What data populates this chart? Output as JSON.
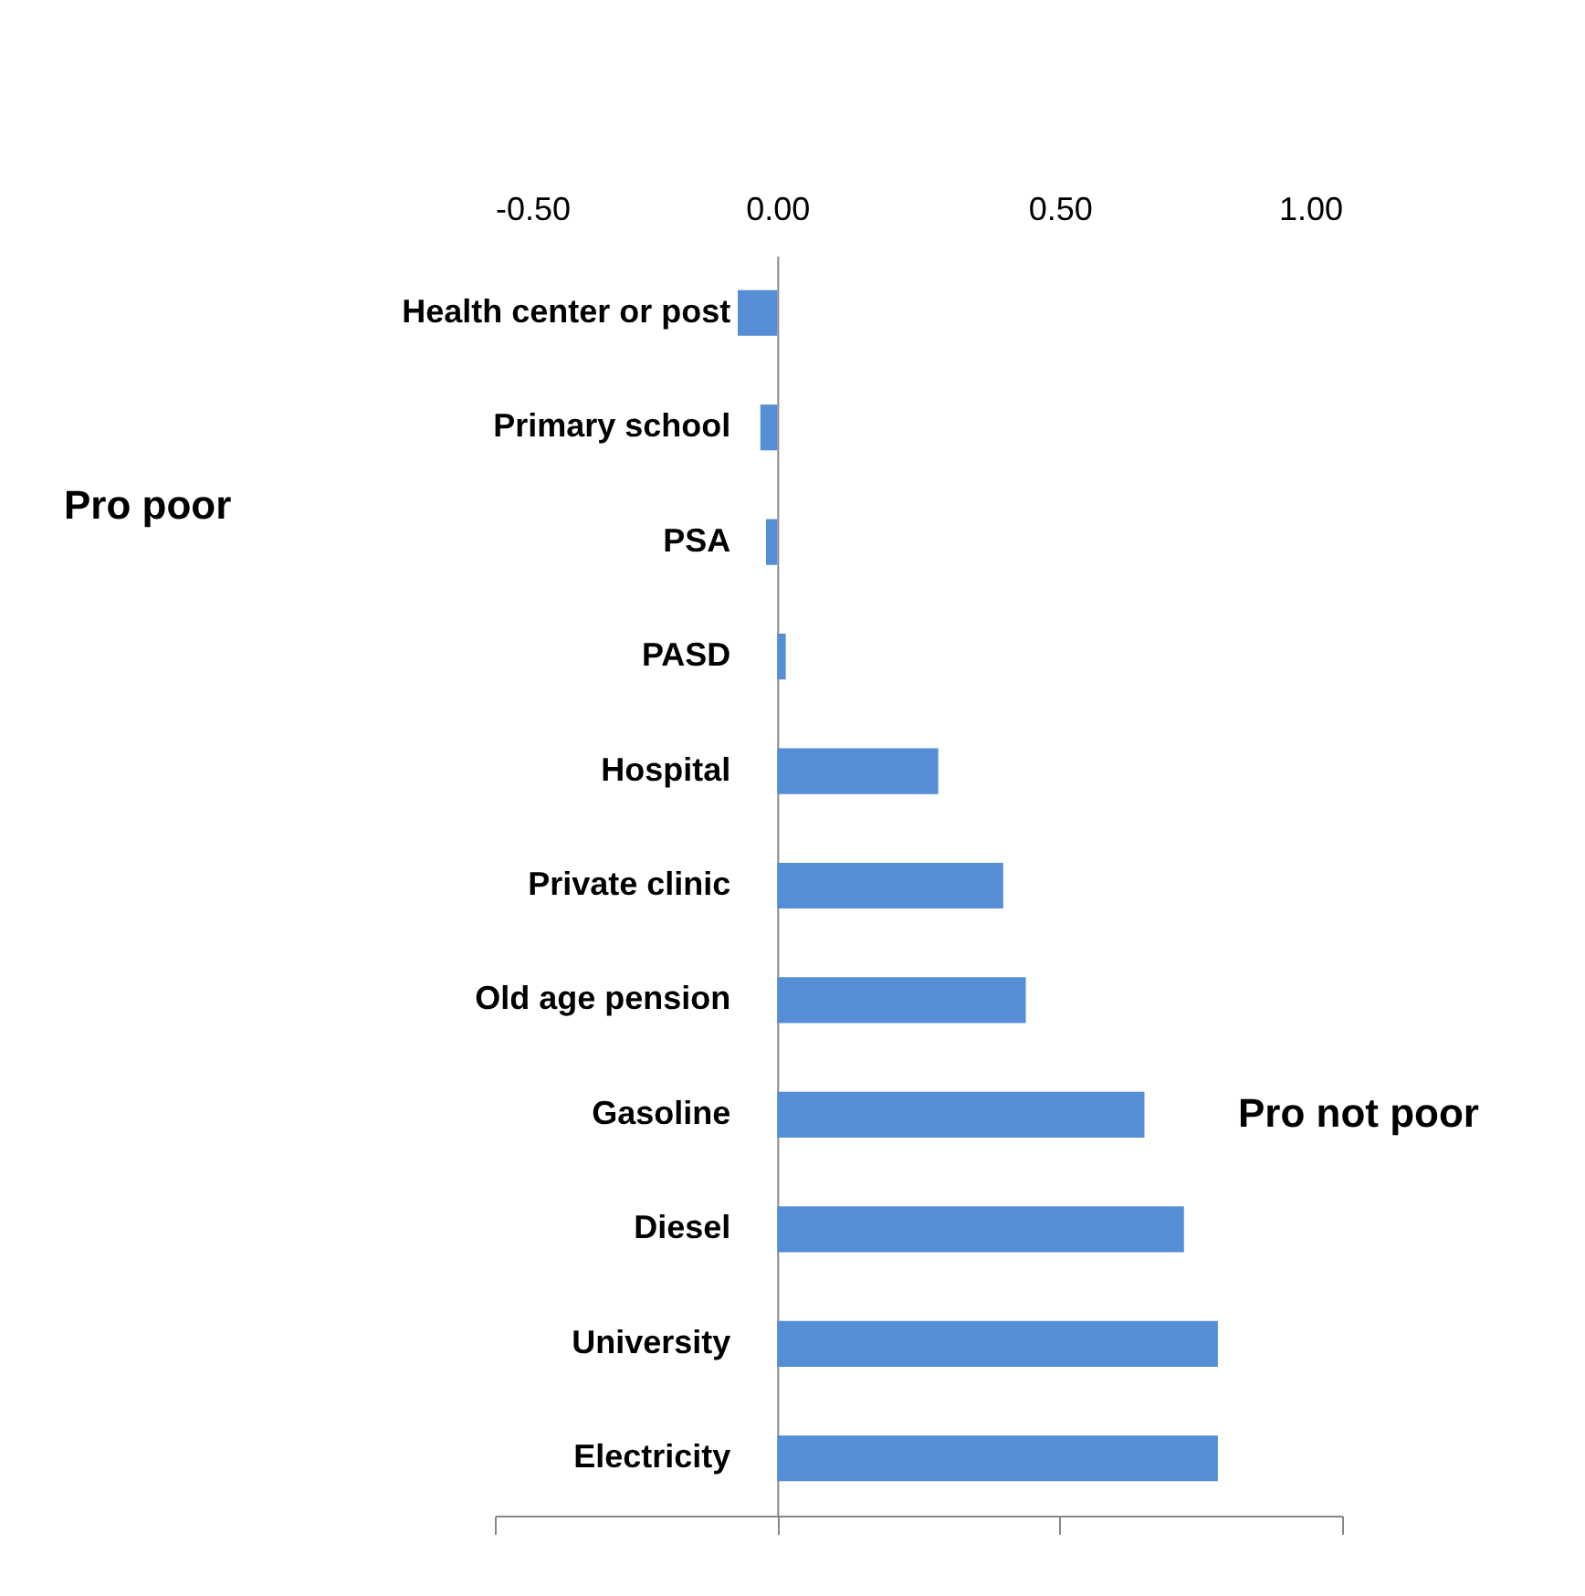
{
  "chart_data": {
    "type": "bar",
    "orientation": "horizontal",
    "categories": [
      "Health center or post",
      "Primary school",
      "PSA",
      "PASD",
      "Hospital",
      "Private clinic",
      "Old age pension",
      "Gasoline",
      "Diesel",
      "University",
      "Electricity"
    ],
    "values": [
      -0.07,
      -0.03,
      -0.02,
      0.015,
      0.285,
      0.4,
      0.44,
      0.65,
      0.72,
      0.78,
      0.78
    ],
    "color": "#558ed5",
    "xlim": [
      -0.5,
      1.0
    ],
    "xticks": [
      {
        "value": -0.5,
        "label": "-0.50"
      },
      {
        "value": 0,
        "label": "0.00"
      },
      {
        "value": 0.5,
        "label": "0.50"
      },
      {
        "value": 1.0,
        "label": "1.00"
      }
    ],
    "grid": false,
    "annotations": [
      "Pro poor",
      "Pro not poor"
    ]
  }
}
